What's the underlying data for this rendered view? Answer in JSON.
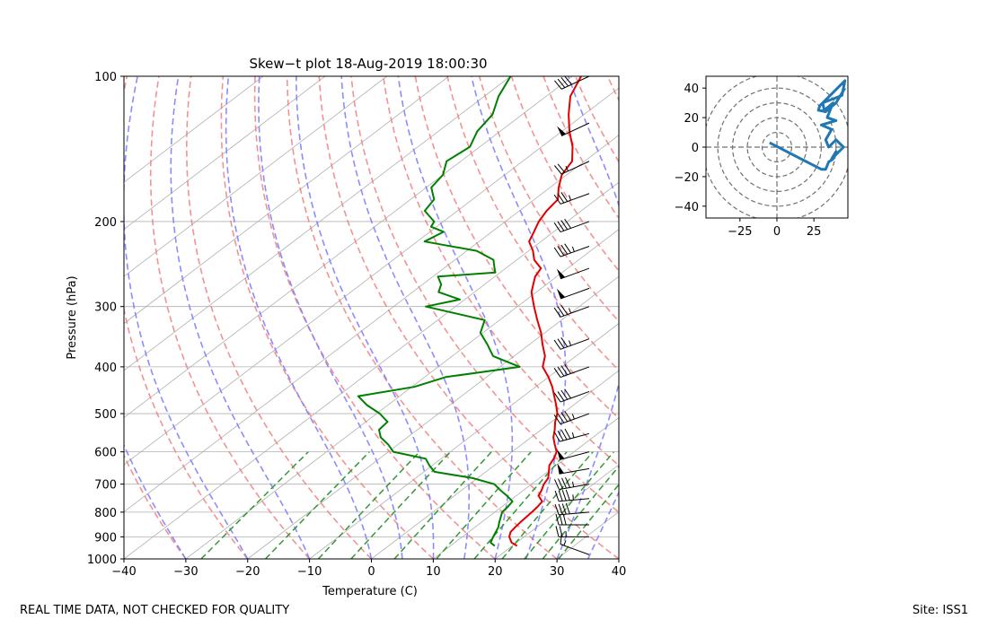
{
  "footer": {
    "quality_note": "REAL TIME DATA, NOT CHECKED FOR QUALITY",
    "site": "Site: ISS1"
  },
  "colors": {
    "temperature": "#e00000",
    "dewpoint": "#008000",
    "dry_adiabat": "#f08080",
    "moist_adiabat": "#8080ff",
    "mixing_ratio": "#339933",
    "isotherm": "#b0b0b0",
    "hodograph": "#1f77b4",
    "ring": "#707070"
  },
  "chart_data": [
    {
      "type": "line",
      "title": "Skew-t plot 18-Aug-2019 18:00:30",
      "xlabel": "Temperature (C)",
      "ylabel": "Pressure (hPa)",
      "xlim": [
        -40,
        40
      ],
      "ylim": [
        1000,
        100
      ],
      "yscale": "log",
      "skew_deg_per_decade": 102.5,
      "x_ticks": [
        -40,
        -30,
        -20,
        -10,
        0,
        10,
        20,
        30,
        40
      ],
      "y_ticks": [
        100,
        200,
        300,
        400,
        500,
        600,
        700,
        800,
        900,
        1000
      ],
      "grid": true,
      "series": [
        {
          "name": "Temperature",
          "pressure": [
            940,
            925,
            900,
            880,
            860,
            840,
            800,
            780,
            760,
            740,
            720,
            700,
            680,
            660,
            640,
            620,
            600,
            580,
            560,
            540,
            520,
            500,
            480,
            460,
            440,
            420,
            400,
            380,
            360,
            340,
            320,
            300,
            280,
            260,
            250,
            240,
            230,
            220,
            210,
            200,
            190,
            180,
            170,
            160,
            150,
            140,
            130,
            120,
            110,
            100
          ],
          "values": [
            20.8,
            19.2,
            17.6,
            16.8,
            16.5,
            16.3,
            16.0,
            15.8,
            15.4,
            13.6,
            12.9,
            12.0,
            11.4,
            10.2,
            8.9,
            8.2,
            7.2,
            5.4,
            3.6,
            2.2,
            0.6,
            -0.8,
            -2.8,
            -5.0,
            -7.3,
            -10.0,
            -13.1,
            -15.0,
            -17.8,
            -20.6,
            -23.9,
            -27.3,
            -30.8,
            -33.5,
            -34.3,
            -37.2,
            -39.3,
            -41.9,
            -43.2,
            -44.6,
            -45.6,
            -46.2,
            -48.6,
            -50.8,
            -52.0,
            -55.0,
            -58.8,
            -62.5,
            -66.1,
            -68.6
          ]
        },
        {
          "name": "Dewpoint",
          "pressure": [
            940,
            925,
            900,
            880,
            860,
            840,
            800,
            780,
            760,
            740,
            720,
            700,
            680,
            660,
            640,
            620,
            600,
            580,
            560,
            540,
            520,
            500,
            480,
            460,
            440,
            420,
            400,
            380,
            360,
            340,
            320,
            300,
            290,
            280,
            270,
            260,
            255,
            250,
            240,
            230,
            220,
            210,
            205,
            200,
            190,
            180,
            170,
            160,
            150,
            140,
            130,
            120,
            110,
            100
          ],
          "values": [
            17.2,
            15.8,
            15.0,
            14.4,
            13.8,
            12.9,
            11.2,
            11.0,
            10.6,
            8.5,
            6.2,
            4.0,
            -0.8,
            -8.3,
            -10.5,
            -12.5,
            -19.2,
            -21.5,
            -24.3,
            -26.2,
            -26.5,
            -29.5,
            -33.4,
            -36.7,
            -29.6,
            -26.6,
            -16.8,
            -23.4,
            -26.7,
            -30.4,
            -32.4,
            -44.8,
            -40.8,
            -45.8,
            -47.0,
            -49.2,
            -40.8,
            -41.8,
            -43.8,
            -48.4,
            -58.8,
            -57.8,
            -60.9,
            -61.5,
            -65.3,
            -66.2,
            -69.2,
            -70.0,
            -72.3,
            -71.6,
            -73.7,
            -74.8,
            -77.7,
            -80.0
          ]
        }
      ],
      "wind_barbs": {
        "pressure": [
          980,
          900,
          850,
          800,
          750,
          700,
          650,
          600,
          550,
          500,
          450,
          400,
          350,
          300,
          275,
          250,
          225,
          200,
          175,
          150,
          125,
          100
        ],
        "speed_kt": [
          15,
          25,
          30,
          40,
          45,
          45,
          50,
          50,
          45,
          45,
          40,
          40,
          35,
          35,
          50,
          50,
          45,
          40,
          35,
          25,
          50,
          40
        ],
        "direction_deg": [
          290,
          270,
          270,
          265,
          265,
          260,
          260,
          255,
          255,
          250,
          250,
          250,
          250,
          250,
          250,
          250,
          250,
          250,
          250,
          245,
          245,
          245
        ]
      }
    },
    {
      "type": "line",
      "title": "",
      "xlabel": "",
      "ylabel": "",
      "xlim": [
        -48,
        48
      ],
      "ylim": [
        -48,
        48
      ],
      "x_ticks": [
        -25,
        0,
        25
      ],
      "y_ticks": [
        -40,
        -20,
        0,
        20,
        40
      ],
      "ring_radii": [
        10,
        20,
        30,
        40,
        50
      ],
      "series": [
        {
          "name": "Hodograph",
          "x": [
            -5,
            30,
            33,
            35,
            38,
            40,
            37,
            45,
            40,
            35,
            33,
            37,
            30,
            40,
            34,
            38,
            32,
            31,
            44,
            46,
            29,
            28,
            33,
            40,
            46
          ],
          "y": [
            3,
            -15,
            -15,
            -10,
            -8,
            -3,
            -8,
            0,
            5,
            0,
            5,
            12,
            15,
            18,
            20,
            30,
            25,
            30,
            35,
            45,
            28,
            25,
            24,
            30,
            40
          ]
        }
      ]
    }
  ]
}
